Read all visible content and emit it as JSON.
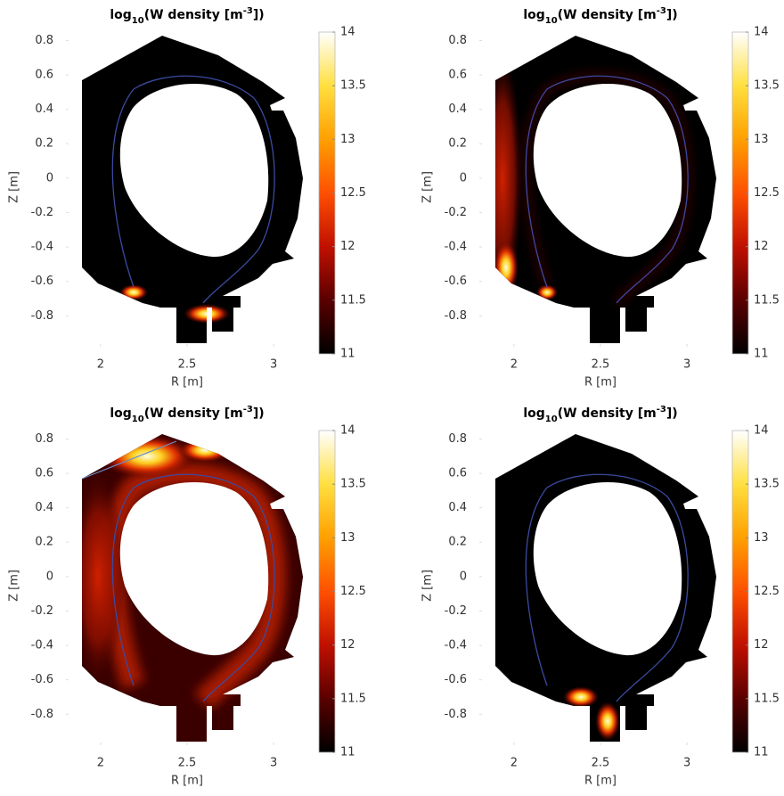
{
  "chart_data": [
    {
      "type": "heatmap",
      "title": [
        "log",
        "10",
        "(W density [m",
        "-3",
        "])"
      ],
      "xlabel": "R [m]",
      "ylabel": "Z [m]",
      "xlim": [
        1.8,
        3.2
      ],
      "xticks": [
        2,
        2.5,
        3
      ],
      "ylim": [
        -0.98,
        0.88
      ],
      "yticks": [
        -0.8,
        -0.6,
        -0.4,
        -0.2,
        0,
        0.2,
        0.4,
        0.6,
        0.8
      ],
      "colormap": "hot",
      "clim": [
        11,
        14
      ],
      "cticks": [
        11,
        11.5,
        12,
        12.5,
        13,
        13.5,
        14
      ]
    },
    {
      "type": "heatmap",
      "title": [
        "log",
        "10",
        "(W density [m",
        "-3",
        "])"
      ],
      "xlabel": "R [m]",
      "ylabel": "Z [m]",
      "xlim": [
        1.8,
        3.2
      ],
      "xticks": [
        2,
        2.5,
        3
      ],
      "ylim": [
        -0.98,
        0.88
      ],
      "yticks": [
        -0.8,
        -0.6,
        -0.4,
        -0.2,
        0,
        0.2,
        0.4,
        0.6,
        0.8
      ],
      "colormap": "hot",
      "clim": [
        11,
        14
      ],
      "cticks": [
        11,
        11.5,
        12,
        12.5,
        13,
        13.5,
        14
      ]
    },
    {
      "type": "heatmap",
      "title": [
        "log",
        "10",
        "(W density [m",
        "-3",
        "])"
      ],
      "xlabel": "R [m]",
      "ylabel": "Z [m]",
      "xlim": [
        1.8,
        3.2
      ],
      "xticks": [
        2,
        2.5,
        3
      ],
      "ylim": [
        -0.98,
        0.88
      ],
      "yticks": [
        -0.8,
        -0.6,
        -0.4,
        -0.2,
        0,
        0.2,
        0.4,
        0.6,
        0.8
      ],
      "colormap": "hot",
      "clim": [
        11,
        14
      ],
      "cticks": [
        11,
        11.5,
        12,
        12.5,
        13,
        13.5,
        14
      ]
    },
    {
      "type": "heatmap",
      "title": [
        "log",
        "10",
        "(W density [m",
        "-3",
        "])"
      ],
      "xlabel": "R [m]",
      "ylabel": "Z [m]",
      "xlim": [
        1.8,
        3.2
      ],
      "xticks": [
        2,
        2.5,
        3
      ],
      "ylim": [
        -0.98,
        0.88
      ],
      "yticks": [
        -0.8,
        -0.6,
        -0.4,
        -0.2,
        0,
        0.2,
        0.4,
        0.6,
        0.8
      ],
      "colormap": "hot",
      "clim": [
        11,
        14
      ],
      "cticks": [
        11,
        11.5,
        12,
        12.5,
        13,
        13.5,
        14
      ]
    }
  ]
}
